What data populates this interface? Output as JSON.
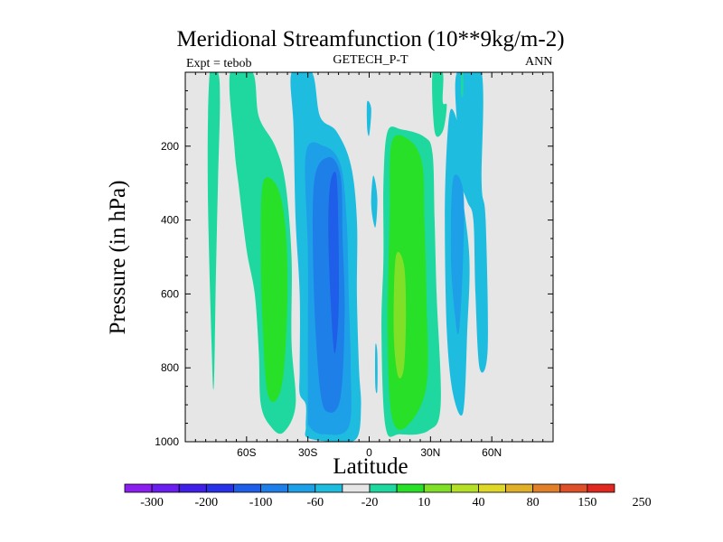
{
  "chart_data": {
    "type": "heatmap",
    "title": "Meridional Streamfunction (10**9kg/m-2)",
    "subtitle_left": "Expt = tebob",
    "subtitle_center": "GETECH_P-T",
    "subtitle_right": "ANN",
    "xlabel": "Latitude",
    "ylabel": "Pressure (in hPa)",
    "xlim": [
      -90,
      90
    ],
    "ylim": [
      0,
      1000
    ],
    "y_inverted": true,
    "x_ticks": [
      {
        "value": -60,
        "label": "60S"
      },
      {
        "value": -30,
        "label": "30S"
      },
      {
        "value": 0,
        "label": "0"
      },
      {
        "value": 30,
        "label": "30N"
      },
      {
        "value": 60,
        "label": "60N"
      }
    ],
    "y_ticks": [
      {
        "value": 200,
        "label": "200"
      },
      {
        "value": 400,
        "label": "400"
      },
      {
        "value": 600,
        "label": "600"
      },
      {
        "value": 800,
        "label": "800"
      },
      {
        "value": 1000,
        "label": "1000"
      }
    ],
    "background_color": "#e6e6e6",
    "colorbar": {
      "colors": [
        "#8a1ff0",
        "#6a1ff0",
        "#4020e8",
        "#2830e8",
        "#1e5ee8",
        "#1e7fe8",
        "#1ea0e8",
        "#1ebde0",
        "#e6e6e6",
        "#1ed8a0",
        "#28e028",
        "#80e028",
        "#b4e028",
        "#e0d828",
        "#e0b028",
        "#e08028",
        "#e05028",
        "#e02820"
      ],
      "labels": [
        "-300",
        "-200",
        "-100",
        "-60",
        "-20",
        "10",
        "40",
        "80",
        "150",
        "250"
      ]
    },
    "regions": [
      {
        "level": 10,
        "color": "#1ed8a0",
        "points": [
          [
            -78,
            0
          ],
          [
            -74,
            0
          ],
          [
            -73,
            80
          ],
          [
            -74,
            300
          ],
          [
            -75,
            550
          ],
          [
            -76,
            845
          ],
          [
            -77,
            760
          ],
          [
            -79,
            300
          ]
        ]
      },
      {
        "level": 10,
        "color": "#1ed8a0",
        "points": [
          [
            -68,
            0
          ],
          [
            -57,
            0
          ],
          [
            -54,
            120
          ],
          [
            -46,
            200
          ],
          [
            -41,
            300
          ],
          [
            -38,
            500
          ],
          [
            -38,
            730
          ],
          [
            -36,
            900
          ],
          [
            -42,
            975
          ],
          [
            -48,
            960
          ],
          [
            -53,
            900
          ],
          [
            -54,
            760
          ],
          [
            -56,
            600
          ],
          [
            -60,
            480
          ],
          [
            -64,
            300
          ],
          [
            -66,
            200
          ]
        ]
      },
      {
        "level": 40,
        "color": "#28e028",
        "points": [
          [
            -52,
            300
          ],
          [
            -45,
            310
          ],
          [
            -41,
            420
          ],
          [
            -40,
            600
          ],
          [
            -42,
            820
          ],
          [
            -46,
            890
          ],
          [
            -50,
            860
          ],
          [
            -52,
            700
          ],
          [
            -53,
            500
          ]
        ]
      },
      {
        "level": -20,
        "color": "#1ebde0",
        "points": [
          [
            -38,
            0
          ],
          [
            -28,
            0
          ],
          [
            -24,
            120
          ],
          [
            -16,
            160
          ],
          [
            -9,
            250
          ],
          [
            -6,
            400
          ],
          [
            -6,
            600
          ],
          [
            -5,
            800
          ],
          [
            -4,
            900
          ],
          [
            -6,
            990
          ],
          [
            -16,
            1000
          ],
          [
            -30,
            990
          ],
          [
            -31,
            960
          ],
          [
            -31,
            900
          ],
          [
            -34,
            870
          ],
          [
            -34,
            800
          ],
          [
            -34,
            600
          ],
          [
            -36,
            400
          ],
          [
            -37,
            150
          ]
        ]
      },
      {
        "level": -60,
        "color": "#1ea0e8",
        "points": [
          [
            -31,
            220
          ],
          [
            -22,
            200
          ],
          [
            -14,
            250
          ],
          [
            -11,
            400
          ],
          [
            -10,
            600
          ],
          [
            -9,
            800
          ],
          [
            -10,
            960
          ],
          [
            -22,
            980
          ],
          [
            -29,
            960
          ],
          [
            -30,
            900
          ],
          [
            -30,
            500
          ]
        ]
      },
      {
        "level": -100,
        "color": "#1e7fe8",
        "points": [
          [
            -27,
            300
          ],
          [
            -20,
            230
          ],
          [
            -14,
            280
          ],
          [
            -13,
            450
          ],
          [
            -12,
            650
          ],
          [
            -14,
            880
          ],
          [
            -20,
            920
          ],
          [
            -24,
            860
          ],
          [
            -27,
            600
          ]
        ]
      },
      {
        "level": -100,
        "color": "#1e5ee8",
        "points": [
          [
            -19,
            300
          ],
          [
            -16,
            280
          ],
          [
            -15,
            450
          ],
          [
            -15,
            650
          ],
          [
            -17,
            760
          ],
          [
            -19,
            600
          ],
          [
            -20,
            420
          ]
        ]
      },
      {
        "level": -20,
        "color": "#1ebde0",
        "points": [
          [
            -1,
            80
          ],
          [
            1,
            100
          ],
          [
            0,
            170
          ],
          [
            -1,
            150
          ]
        ]
      },
      {
        "level": -20,
        "color": "#1ebde0",
        "points": [
          [
            2,
            280
          ],
          [
            4,
            340
          ],
          [
            3,
            420
          ],
          [
            1,
            360
          ]
        ]
      },
      {
        "level": -20,
        "color": "#1ebde0",
        "points": [
          [
            3,
            740
          ],
          [
            4,
            760
          ],
          [
            4,
            860
          ],
          [
            3,
            850
          ]
        ]
      },
      {
        "level": 10,
        "color": "#1ed8a0",
        "points": [
          [
            9,
            160
          ],
          [
            16,
            155
          ],
          [
            27,
            175
          ],
          [
            31,
            220
          ],
          [
            32,
            400
          ],
          [
            33,
            600
          ],
          [
            35,
            900
          ],
          [
            29,
            970
          ],
          [
            15,
            980
          ],
          [
            8,
            960
          ],
          [
            6,
            700
          ],
          [
            7,
            500
          ],
          [
            7,
            300
          ]
        ]
      },
      {
        "level": 40,
        "color": "#28e028",
        "points": [
          [
            11,
            190
          ],
          [
            20,
            185
          ],
          [
            26,
            250
          ],
          [
            27,
            400
          ],
          [
            28,
            600
          ],
          [
            28,
            850
          ],
          [
            18,
            960
          ],
          [
            11,
            930
          ],
          [
            9,
            700
          ],
          [
            10,
            400
          ]
        ]
      },
      {
        "level": 80,
        "color": "#80e028",
        "points": [
          [
            13,
            500
          ],
          [
            17,
            520
          ],
          [
            18,
            650
          ],
          [
            17,
            800
          ],
          [
            14,
            820
          ],
          [
            12,
            700
          ]
        ]
      },
      {
        "level": 10,
        "color": "#1ed8a0",
        "points": [
          [
            31,
            0
          ],
          [
            36,
            0
          ],
          [
            36,
            80
          ],
          [
            38,
            90
          ],
          [
            36,
            160
          ],
          [
            32,
            160
          ]
        ]
      },
      {
        "level": -20,
        "color": "#1ebde0",
        "points": [
          [
            43,
            0
          ],
          [
            55,
            0
          ],
          [
            55,
            300
          ],
          [
            57,
            400
          ],
          [
            58,
            750
          ],
          [
            54,
            800
          ],
          [
            52,
            600
          ],
          [
            51,
            400
          ],
          [
            48,
            350
          ],
          [
            44,
            280
          ],
          [
            43,
            150
          ]
        ]
      },
      {
        "level": -20,
        "color": "#1ebde0",
        "points": [
          [
            40,
            100
          ],
          [
            44,
            160
          ],
          [
            45,
            300
          ],
          [
            49,
            500
          ],
          [
            48,
            700
          ],
          [
            46,
            920
          ],
          [
            41,
            870
          ],
          [
            38,
            700
          ],
          [
            37,
            400
          ],
          [
            38,
            200
          ]
        ]
      },
      {
        "level": -60,
        "color": "#1ea0e8",
        "points": [
          [
            41,
            290
          ],
          [
            46,
            320
          ],
          [
            46,
            500
          ],
          [
            44,
            700
          ],
          [
            42,
            660
          ],
          [
            40,
            500
          ]
        ]
      },
      {
        "level": 10,
        "color": "#1ed8a0",
        "points": [
          [
            45,
            0
          ],
          [
            46,
            0
          ],
          [
            46,
            60
          ],
          [
            45,
            60
          ]
        ]
      }
    ]
  }
}
